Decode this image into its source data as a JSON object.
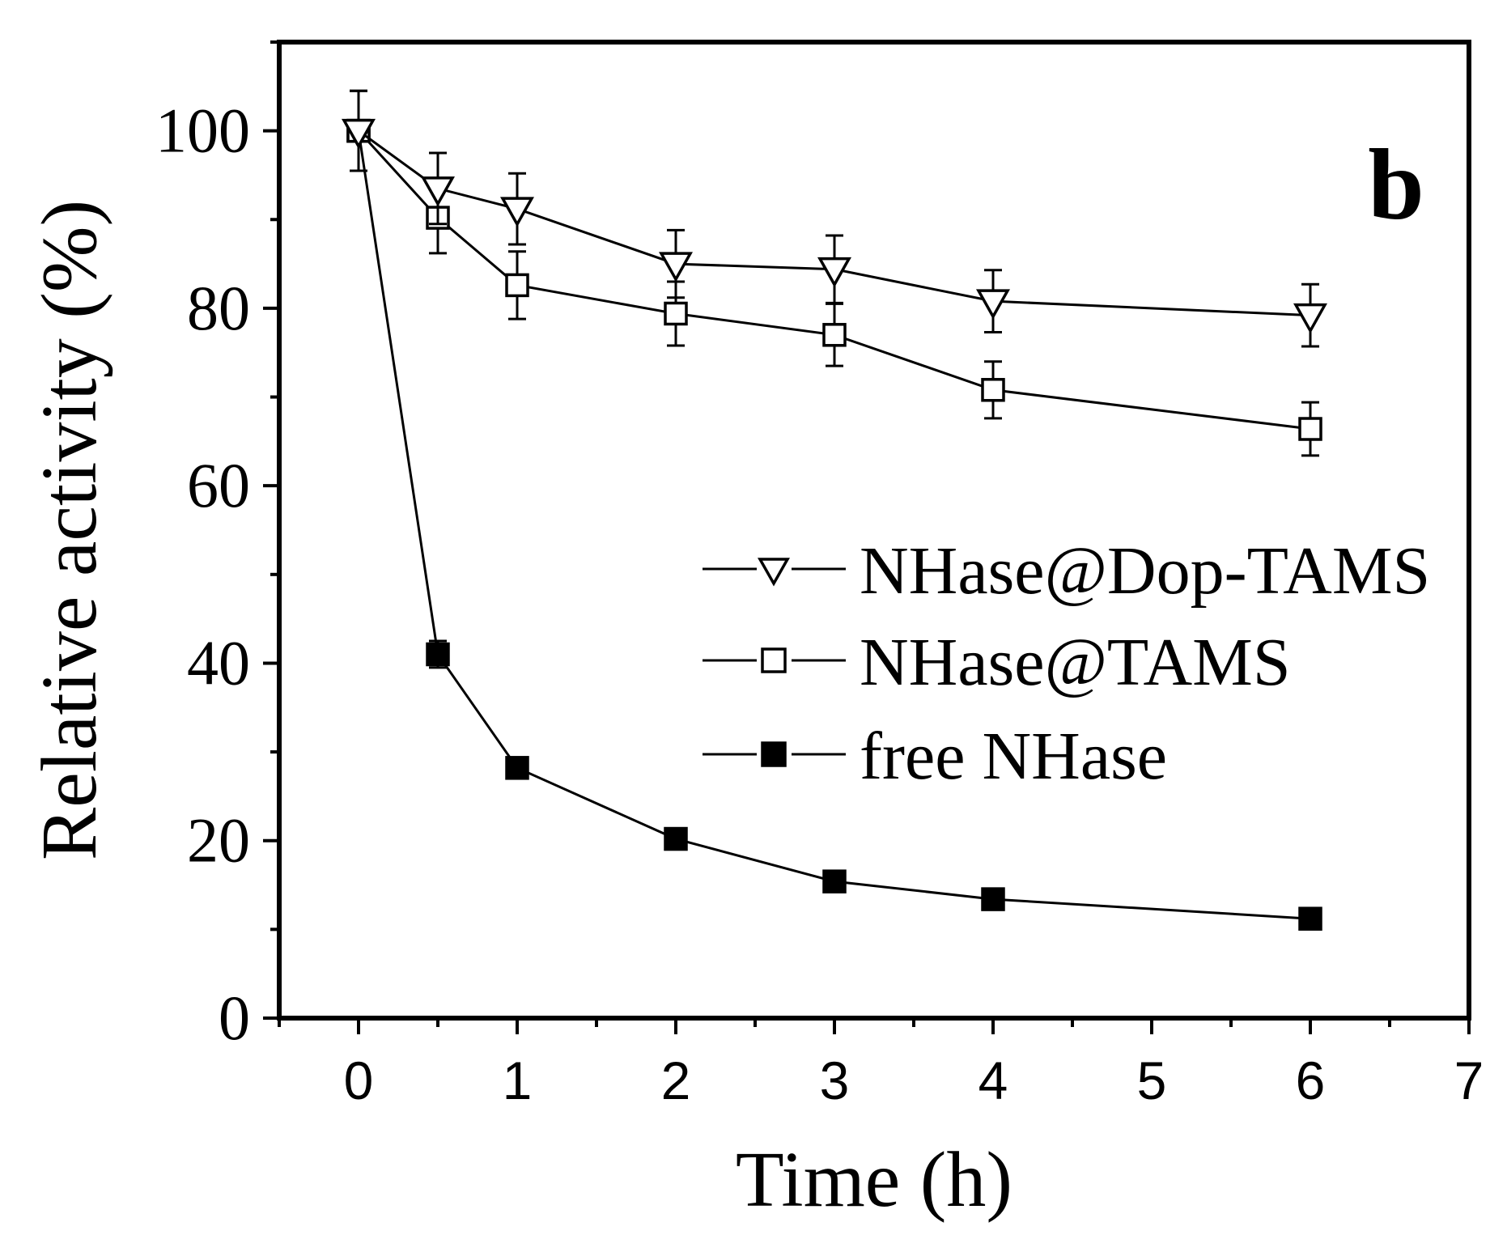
{
  "chart_data": {
    "type": "line",
    "panel_label": "b",
    "xlabel": "Time (h)",
    "ylabel": "Relative activity (%)",
    "xlim": [
      -0.5,
      7
    ],
    "ylim": [
      0,
      110
    ],
    "x_ticks": [
      0,
      1,
      2,
      3,
      4,
      5,
      6,
      7
    ],
    "y_ticks": [
      0,
      20,
      40,
      60,
      80,
      100
    ],
    "grid": false,
    "legend_position": "center-right",
    "series": [
      {
        "name": "NHase@Dop-TAMS",
        "marker": "triangle-down-open",
        "x": [
          0,
          0.5,
          1,
          2,
          3,
          4,
          6
        ],
        "y": [
          100,
          93.5,
          91.2,
          85.0,
          84.4,
          80.8,
          79.2
        ],
        "error": [
          4.5,
          4.0,
          4.0,
          3.8,
          3.8,
          3.5,
          3.5
        ]
      },
      {
        "name": "NHase@TAMS",
        "marker": "square-open",
        "x": [
          0,
          0.5,
          1,
          2,
          3,
          4,
          6
        ],
        "y": [
          100,
          90.2,
          82.6,
          79.4,
          77.0,
          70.8,
          66.4
        ],
        "error": [
          4.5,
          4.0,
          3.8,
          3.6,
          3.5,
          3.2,
          3.0
        ]
      },
      {
        "name": "free NHase",
        "marker": "square-filled",
        "x": [
          0,
          0.5,
          1,
          2,
          3,
          4,
          6
        ],
        "y": [
          100,
          41.0,
          28.2,
          20.2,
          15.4,
          13.4,
          11.2
        ],
        "error": [
          0,
          1.5,
          0.8,
          0,
          0,
          0,
          0
        ]
      }
    ]
  }
}
